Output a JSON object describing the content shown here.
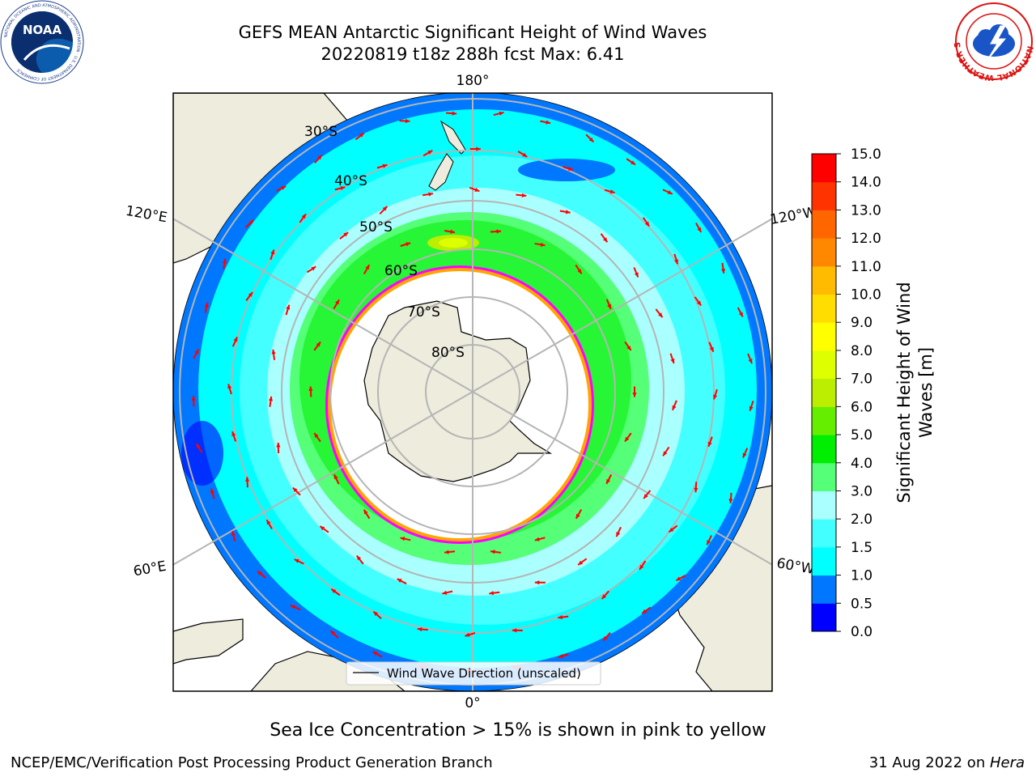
{
  "title": {
    "line1": "GEFS MEAN Antarctic Significant Height of Wind Waves",
    "line2": "20220819 t18z 288h fcst   Max: 6.41"
  },
  "map": {
    "projection": "south polar stereographic",
    "longitude_labels": [
      "180°",
      "120°E",
      "120°W",
      "60°E",
      "60°W",
      "0°"
    ],
    "latitude_labels": [
      "30°S",
      "40°S",
      "50°S",
      "60°S",
      "70°S",
      "80°S"
    ],
    "land_color": "#eeecdd",
    "sea_ice_color": "#ffffff",
    "ice_edge_colors": [
      "#ff00ff",
      "#ffa500",
      "#ffff00"
    ],
    "arrow_color": "#ff0000",
    "legend_label": "Wind Wave Direction (unscaled)"
  },
  "colorbar": {
    "label_line1": "Significant Height of Wind",
    "label_line2": "Waves [m]",
    "ticks": [
      "0.0",
      "0.5",
      "1.0",
      "1.5",
      "2.0",
      "3.0",
      "4.0",
      "5.0",
      "6.0",
      "7.0",
      "8.0",
      "9.0",
      "10.0",
      "11.0",
      "12.0",
      "13.0",
      "14.0",
      "15.0"
    ],
    "colors": [
      "#0000ff",
      "#0077ff",
      "#00ffff",
      "#44ffff",
      "#aaffff",
      "#55ff77",
      "#00ee00",
      "#66ee00",
      "#bbee00",
      "#ddff00",
      "#ffff00",
      "#ffdd00",
      "#ffbb00",
      "#ff8800",
      "#ff6600",
      "#ff3300",
      "#ff0000"
    ]
  },
  "subtitle": "Sea Ice Concentration > 15% is shown in pink to yellow",
  "footer": {
    "left": "NCEP/EMC/Verification Post Processing Product Generation Branch",
    "date": "31 Aug 2022 on ",
    "host": "Hera"
  },
  "logos": {
    "noaa_text": "NOAA",
    "noaa_ring_text": "NATIONAL OCEANIC AND ATMOSPHERIC ADMINISTRATION · U.S. DEPARTMENT OF COMMERCE",
    "nws_ring_text": "NATIONAL WEATHER SERVICE"
  }
}
